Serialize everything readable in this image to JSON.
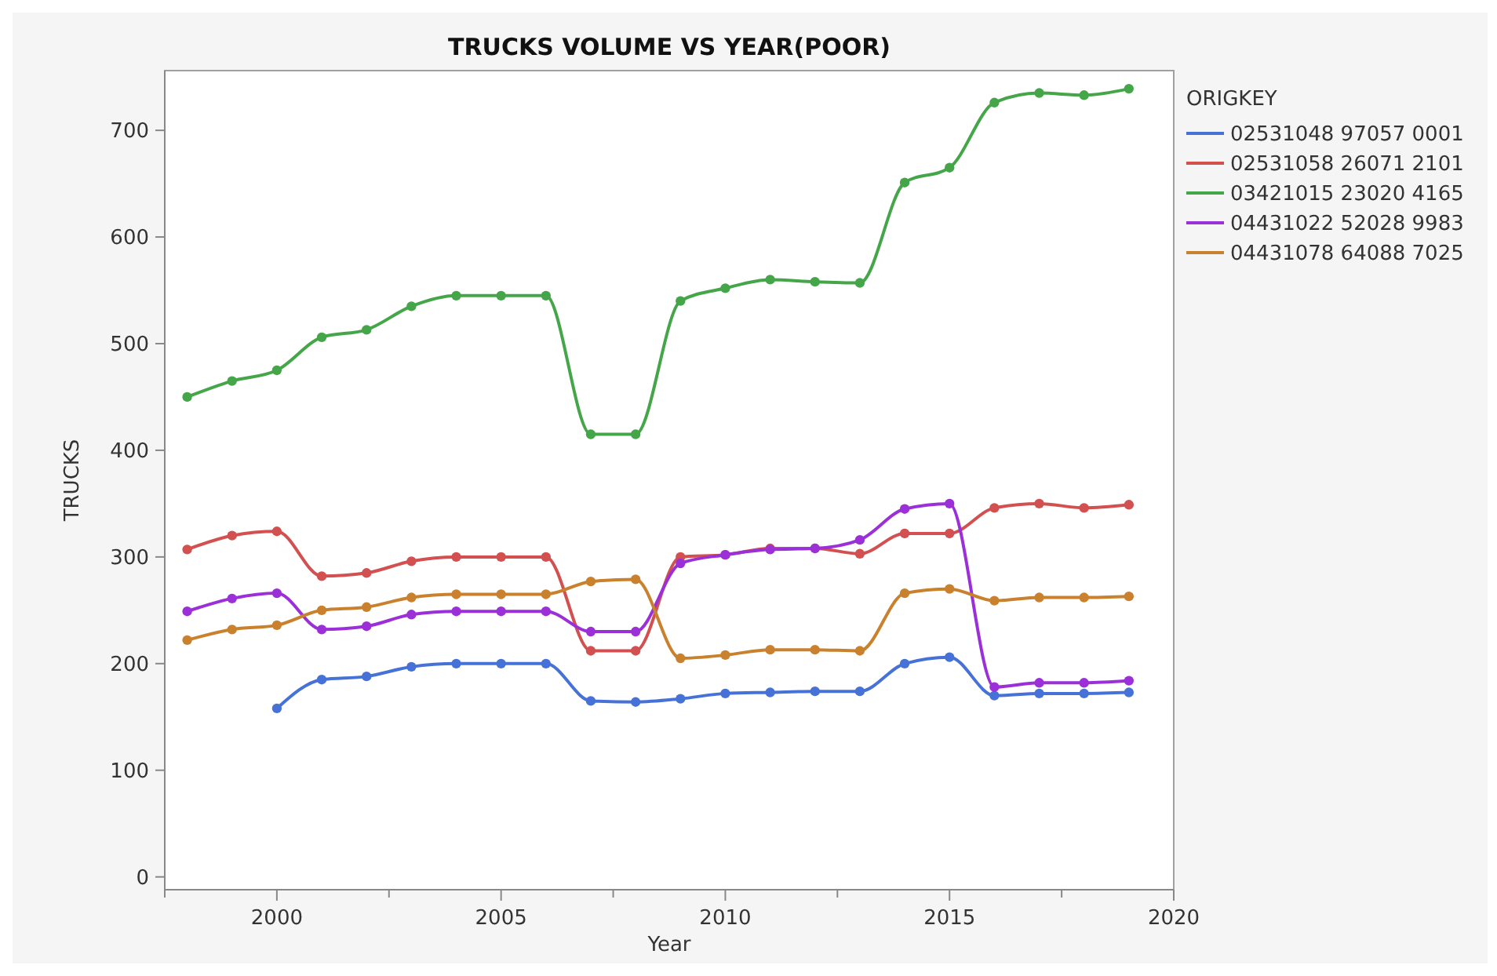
{
  "chart_data": {
    "type": "line",
    "title": "TRUCKS VOLUME VS YEAR(POOR)",
    "xlabel": "Year",
    "ylabel": "TRUCKS",
    "legend_title": "ORIGKEY",
    "legend": "right",
    "marker": "circle",
    "grid": false,
    "x": [
      1998,
      1999,
      2000,
      2001,
      2002,
      2003,
      2004,
      2005,
      2006,
      2007,
      2008,
      2009,
      2010,
      2011,
      2012,
      2013,
      2014,
      2015,
      2016,
      2017,
      2018,
      2019
    ],
    "xlim": [
      1997.5,
      2020
    ],
    "xticks": [
      {
        "value": 1997.5,
        "label": null
      },
      2000,
      {
        "value": 2002.5,
        "label": null
      },
      2005,
      {
        "value": 2007.5,
        "label": null
      },
      2010,
      {
        "value": 2012.5,
        "label": null
      },
      2015,
      {
        "value": 2017.5,
        "label": null
      },
      2020
    ],
    "ylim": [
      -12,
      756
    ],
    "yticks": [
      0,
      100,
      200,
      300,
      400,
      500,
      600,
      700
    ],
    "series": [
      {
        "name": "02531048 97057 0001",
        "color": "#4672d8",
        "values": [
          null,
          null,
          158,
          185,
          188,
          197,
          200,
          200,
          200,
          165,
          164,
          167,
          172,
          173,
          174,
          174,
          200,
          206,
          170,
          172,
          172,
          173
        ]
      },
      {
        "name": "02531058 26071 2101",
        "color": "#d2504f",
        "values": [
          307,
          320,
          324,
          282,
          285,
          296,
          300,
          300,
          300,
          212,
          212,
          300,
          302,
          308,
          308,
          303,
          322,
          322,
          346,
          350,
          346,
          349
        ]
      },
      {
        "name": "03421015 23020 4165",
        "color": "#44a649",
        "values": [
          450,
          465,
          475,
          506,
          513,
          535,
          545,
          545,
          545,
          415,
          415,
          540,
          552,
          560,
          558,
          557,
          651,
          665,
          726,
          735,
          733,
          739
        ]
      },
      {
        "name": "04431022 52028 9983",
        "color": "#9b30d8",
        "values": [
          249,
          261,
          266,
          232,
          235,
          246,
          249,
          249,
          249,
          230,
          230,
          294,
          302,
          307,
          308,
          316,
          345,
          350,
          178,
          182,
          182,
          184
        ]
      },
      {
        "name": "04431078 64088 7025",
        "color": "#c9812e",
        "values": [
          222,
          232,
          236,
          250,
          253,
          262,
          265,
          265,
          265,
          277,
          279,
          205,
          208,
          213,
          213,
          212,
          266,
          270,
          259,
          262,
          262,
          263
        ]
      }
    ]
  }
}
